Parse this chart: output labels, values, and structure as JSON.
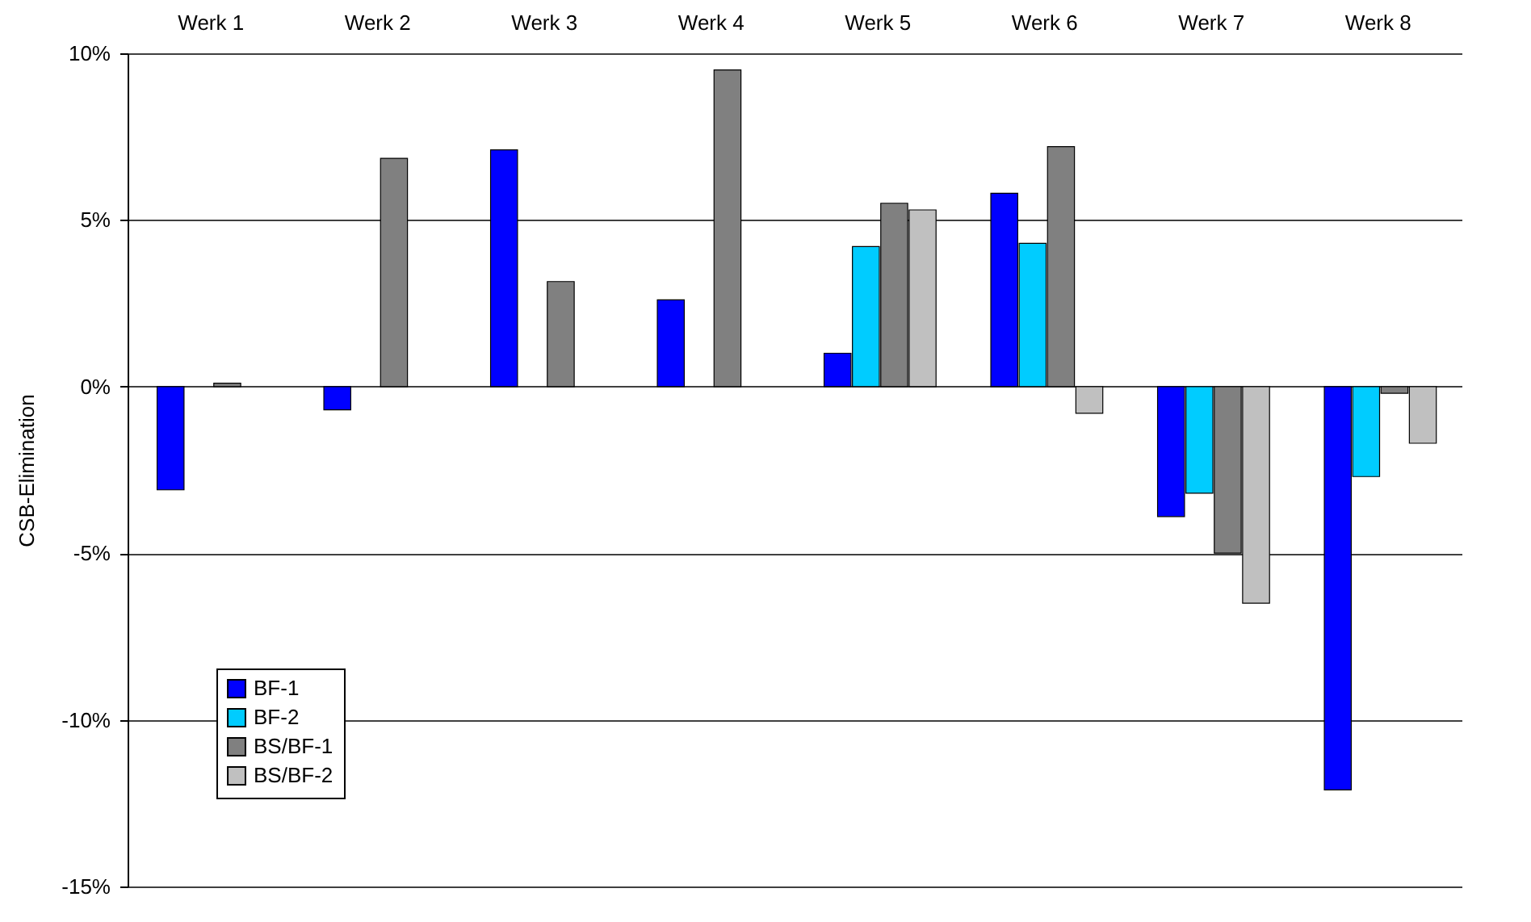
{
  "chart_data": {
    "type": "bar",
    "ylabel": "CSB-Elimination",
    "categories": [
      "Werk 1",
      "Werk 2",
      "Werk 3",
      "Werk 4",
      "Werk 5",
      "Werk 6",
      "Werk 7",
      "Werk 8"
    ],
    "series": [
      {
        "name": "BF-1",
        "color": "#0000ff",
        "values": [
          -3.1,
          -0.7,
          7.1,
          2.6,
          1.0,
          5.8,
          -3.9,
          -12.1
        ]
      },
      {
        "name": "BF-2",
        "color": "#00ccff",
        "values": [
          null,
          null,
          null,
          null,
          4.2,
          4.3,
          -3.2,
          -2.7
        ]
      },
      {
        "name": "BS/BF-1",
        "color": "#808080",
        "values": [
          0.1,
          6.85,
          3.15,
          9.5,
          5.5,
          7.2,
          -5.0,
          -0.2
        ]
      },
      {
        "name": "BS/BF-2",
        "color": "#c0c0c0",
        "values": [
          null,
          null,
          null,
          null,
          5.3,
          -0.8,
          -6.5,
          -1.7
        ]
      }
    ],
    "ylim": [
      -15,
      10
    ],
    "yticks": [
      {
        "value": -15,
        "label": "-15%"
      },
      {
        "value": -10,
        "label": "-10%"
      },
      {
        "value": -5,
        "label": "-5%"
      },
      {
        "value": 0,
        "label": "0%"
      },
      {
        "value": 5,
        "label": "5%"
      },
      {
        "value": 10,
        "label": "10%"
      }
    ],
    "grid": "y",
    "legend": "bottom left"
  }
}
